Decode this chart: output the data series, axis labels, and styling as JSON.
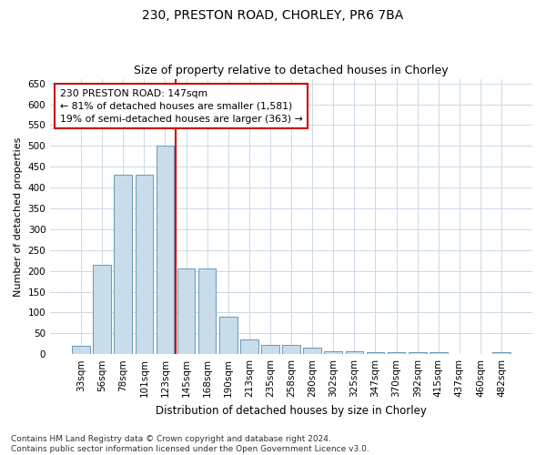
{
  "title1": "230, PRESTON ROAD, CHORLEY, PR6 7BA",
  "title2": "Size of property relative to detached houses in Chorley",
  "xlabel": "Distribution of detached houses by size in Chorley",
  "ylabel": "Number of detached properties",
  "categories": [
    "33sqm",
    "56sqm",
    "78sqm",
    "101sqm",
    "123sqm",
    "145sqm",
    "168sqm",
    "190sqm",
    "213sqm",
    "235sqm",
    "258sqm",
    "280sqm",
    "302sqm",
    "325sqm",
    "347sqm",
    "370sqm",
    "392sqm",
    "415sqm",
    "437sqm",
    "460sqm",
    "482sqm"
  ],
  "values": [
    20,
    215,
    430,
    430,
    500,
    205,
    205,
    90,
    35,
    22,
    22,
    15,
    7,
    7,
    5,
    5,
    5,
    5,
    0,
    0,
    5
  ],
  "bar_color": "#c9dcea",
  "bar_edge_color": "#6699bb",
  "annotation_text": "230 PRESTON ROAD: 147sqm\n← 81% of detached houses are smaller (1,581)\n19% of semi-detached houses are larger (363) →",
  "annotation_box_color": "#ffffff",
  "annotation_box_edge_color": "#cc0000",
  "vline_color": "#cc0000",
  "grid_color": "#ccd8e8",
  "background_color": "#ffffff",
  "footnote": "Contains HM Land Registry data © Crown copyright and database right 2024.\nContains public sector information licensed under the Open Government Licence v3.0.",
  "ylim": [
    0,
    660
  ],
  "yticks": [
    0,
    50,
    100,
    150,
    200,
    250,
    300,
    350,
    400,
    450,
    500,
    550,
    600,
    650
  ],
  "vline_x": 4.5,
  "title1_fontsize": 10,
  "title2_fontsize": 9,
  "ylabel_fontsize": 8,
  "xlabel_fontsize": 8.5,
  "tick_fontsize": 7.5,
  "footnote_fontsize": 6.5
}
